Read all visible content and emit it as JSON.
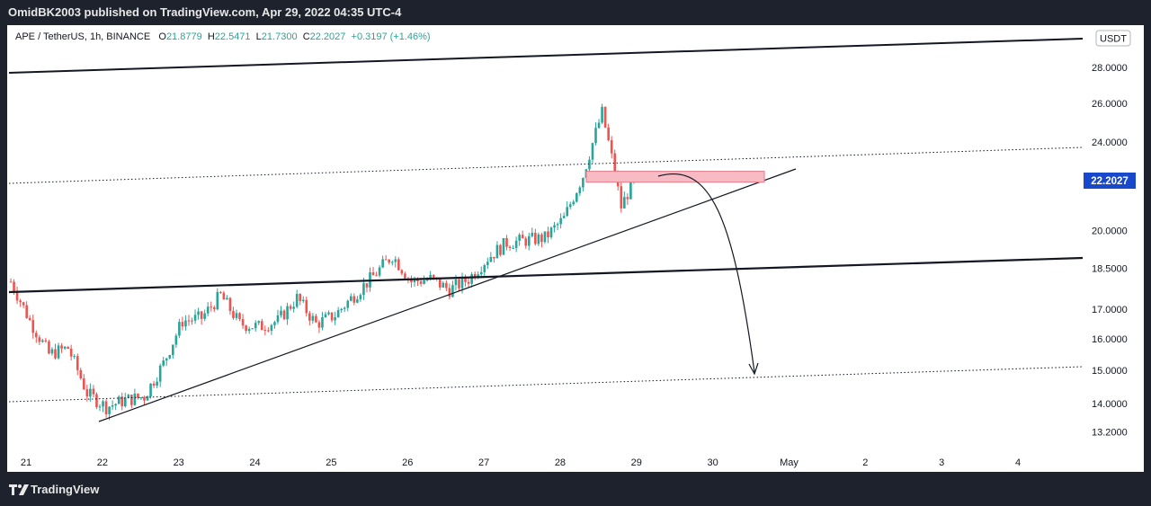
{
  "header": {
    "text": "OmidBK2003 published on TradingView.com, Apr 29, 2022 04:35 UTC-4"
  },
  "legend": {
    "symbol": "APE / TetherUS, 1h, BINANCE",
    "open_label": "O",
    "open": "21.8779",
    "high_label": "H",
    "high": "22.5471",
    "low_label": "L",
    "low": "21.7300",
    "close_label": "C",
    "close": "22.2027",
    "change": "+0.3197 (+1.46%)"
  },
  "footer": {
    "brand": "TradingView"
  },
  "chart_data": {
    "type": "candlestick",
    "currency_badge": "USDT",
    "price_axis": {
      "scale": "log",
      "ticks": [
        "28.0000",
        "26.0000",
        "24.0000",
        "22.0000",
        "20.0000",
        "18.5000",
        "17.0000",
        "16.0000",
        "15.0000",
        "14.0000",
        "13.2000"
      ],
      "last_price": "22.2027",
      "last_price_color": "#1848cc"
    },
    "time_axis": {
      "ticks": [
        "21",
        "22",
        "23",
        "24",
        "25",
        "26",
        "27",
        "28",
        "29",
        "30",
        "May",
        "2",
        "3",
        "4"
      ]
    },
    "colors": {
      "up": "#26a69a",
      "down": "#ef5350",
      "zone": "#f8bbc4"
    },
    "price_path": [
      [
        "Apr 21 00:00",
        18.0
      ],
      [
        "Apr 21 06:00",
        16.6
      ],
      [
        "Apr 21 12:00",
        15.5
      ],
      [
        "Apr 21 18:00",
        15.7
      ],
      [
        "Apr 22 00:00",
        14.3
      ],
      [
        "Apr 22 06:00",
        13.9
      ],
      [
        "Apr 22 12:00",
        14.1
      ],
      [
        "Apr 22 18:00",
        14.2
      ],
      [
        "Apr 23 00:00",
        15.2
      ],
      [
        "Apr 23 06:00",
        16.6
      ],
      [
        "Apr 23 12:00",
        16.7
      ],
      [
        "Apr 23 18:00",
        17.5
      ],
      [
        "Apr 24 00:00",
        16.5
      ],
      [
        "Apr 24 06:00",
        16.4
      ],
      [
        "Apr 24 12:00",
        16.6
      ],
      [
        "Apr 24 18:00",
        17.4
      ],
      [
        "Apr 25 00:00",
        16.5
      ],
      [
        "Apr 25 06:00",
        16.8
      ],
      [
        "Apr 25 12:00",
        17.5
      ],
      [
        "Apr 25 18:00",
        18.2
      ],
      [
        "Apr 26 00:00",
        19.0
      ],
      [
        "Apr 26 06:00",
        18.0
      ],
      [
        "Apr 26 12:00",
        18.1
      ],
      [
        "Apr 26 18:00",
        17.7
      ],
      [
        "Apr 27 00:00",
        18.1
      ],
      [
        "Apr 27 06:00",
        18.9
      ],
      [
        "Apr 27 12:00",
        19.5
      ],
      [
        "Apr 27 18:00",
        19.6
      ],
      [
        "Apr 28 00:00",
        19.7
      ],
      [
        "Apr 28 06:00",
        20.5
      ],
      [
        "Apr 28 12:00",
        22.4
      ],
      [
        "Apr 28 18:00",
        25.5
      ],
      [
        "Apr 29 00:00",
        21.0
      ],
      [
        "Apr 29 04:00",
        22.2
      ]
    ],
    "annotations": {
      "resistance_zone": {
        "low": 22.1,
        "high": 22.6
      },
      "projection_target": 15.0
    }
  }
}
